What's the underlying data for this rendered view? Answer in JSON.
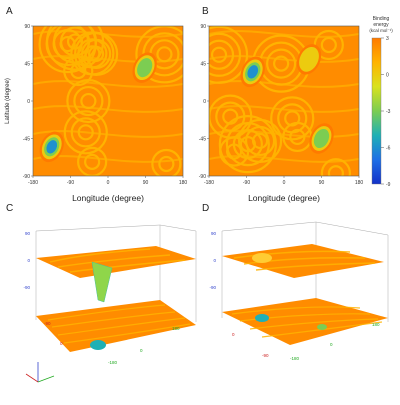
{
  "panels": [
    {
      "label": "A"
    },
    {
      "label": "B"
    },
    {
      "label": "C"
    },
    {
      "label": "D"
    }
  ],
  "axes_2d": {
    "xlabel": "Longitude (degree)",
    "ylabel": "Latitude (degree)",
    "x_ticks": [
      "-180",
      "-90",
      "0",
      "90",
      "180"
    ],
    "y_ticks": [
      "90",
      "45",
      "0",
      "-45",
      "-90"
    ]
  },
  "colorbar": {
    "title_lines": [
      "Binding",
      "energy",
      "(kcal mol⁻¹)"
    ],
    "ticks": [
      "3",
      "0",
      "-3",
      "-6",
      "-9"
    ],
    "range": [
      -9,
      3
    ],
    "stops": [
      "#ff7a00",
      "#ffb300",
      "#d9e21e",
      "#7ccd52",
      "#1fb0b5",
      "#1e6fe6",
      "#1431c8"
    ]
  },
  "axes_3d": {
    "z_ticks": [
      "90",
      "0",
      "-90"
    ],
    "base_ticks_red": [
      "-90",
      "0"
    ],
    "base_ticks_green": [
      "180",
      "0",
      "-180"
    ]
  },
  "chart_data": [
    {
      "type": "heatmap",
      "panel": "A",
      "xlabel": "Longitude (degree)",
      "ylabel": "Latitude (degree)",
      "xlim": [
        -180,
        180
      ],
      "ylim": [
        -90,
        90
      ],
      "zlim": [
        -9,
        3
      ],
      "hotspots": [
        {
          "x": -135,
          "y": -55,
          "z": -8
        },
        {
          "x": 88,
          "y": 40,
          "z": -3
        }
      ]
    },
    {
      "type": "heatmap",
      "panel": "B",
      "xlabel": "Longitude (degree)",
      "ylabel": "",
      "xlim": [
        -180,
        180
      ],
      "ylim": [
        -90,
        90
      ],
      "zlim": [
        -9,
        3
      ],
      "hotspots": [
        {
          "x": -75,
          "y": 35,
          "z": -7
        },
        {
          "x": 90,
          "y": -45,
          "z": -3
        },
        {
          "x": 60,
          "y": 50,
          "z": -2
        }
      ]
    }
  ]
}
